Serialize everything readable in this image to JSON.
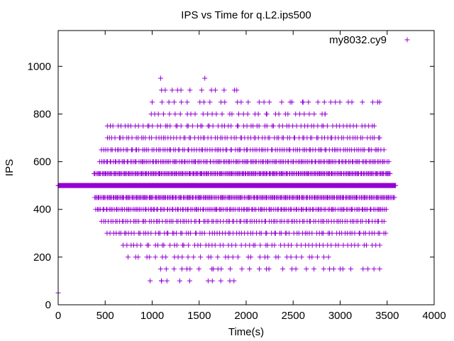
{
  "chart_data": {
    "type": "scatter",
    "title": "IPS vs Time for q.L2.ips500",
    "xlabel": "Time(s)",
    "ylabel": "IPS",
    "xlim": [
      0,
      4000
    ],
    "ylim": [
      0,
      1150
    ],
    "x_ticks": [
      0,
      500,
      1000,
      1500,
      2000,
      2500,
      3000,
      3500,
      4000
    ],
    "y_ticks": [
      0,
      200,
      400,
      600,
      800,
      1000
    ],
    "grid": false,
    "legend_position": "top-right",
    "marker": "plus",
    "series": [
      {
        "name": "my8032.cy9",
        "color": "#9400d3",
        "levels": [
          {
            "y": 500,
            "x_start": 0,
            "x_end": 3590,
            "step": 5
          },
          {
            "y": 550,
            "x_start": 380,
            "x_end": 3540,
            "step": 12
          },
          {
            "y": 450,
            "x_start": 390,
            "x_end": 3590,
            "step": 12
          },
          {
            "y": 600,
            "x_start": 440,
            "x_end": 3520,
            "step": 18
          },
          {
            "y": 400,
            "x_start": 400,
            "x_end": 3500,
            "step": 18
          },
          {
            "y": 650,
            "x_start": 460,
            "x_end": 3480,
            "step": 24
          },
          {
            "y": 350,
            "x_start": 460,
            "x_end": 3480,
            "step": 24
          },
          {
            "y": 700,
            "x_start": 520,
            "x_end": 3450,
            "step": 30
          },
          {
            "y": 300,
            "x_start": 520,
            "x_end": 3500,
            "step": 30
          },
          {
            "y": 750,
            "x_start": 520,
            "x_end": 3400,
            "step": 38
          },
          {
            "y": 250,
            "x_start": 680,
            "x_end": 3450,
            "step": 42
          },
          {
            "y": 800,
            "x_start": 980,
            "x_end": 2850,
            "step": 55
          },
          {
            "y": 200,
            "x_start": 740,
            "x_end": 2900,
            "step": 60
          },
          {
            "y": 850,
            "x_start": 1000,
            "x_end": 3400,
            "step": 80
          },
          {
            "y": 150,
            "x_start": 1090,
            "x_end": 3420,
            "step": 85
          },
          {
            "y": 900,
            "x_start": 1090,
            "x_end": 1920,
            "step": 110
          },
          {
            "y": 100,
            "x_start": 960,
            "x_end": 1900,
            "step": 120
          }
        ],
        "extra_points": [
          [
            0,
            50
          ],
          [
            1090,
            950
          ],
          [
            1560,
            950
          ],
          [
            1100,
            100
          ],
          [
            1640,
            100
          ],
          [
            1870,
            100
          ],
          [
            1100,
            900
          ],
          [
            1270,
            900
          ],
          [
            1900,
            900
          ],
          [
            1630,
            900
          ],
          [
            2600,
            850
          ],
          [
            2900,
            850
          ],
          [
            3420,
            850
          ],
          [
            2840,
            800
          ],
          [
            1370,
            150
          ],
          [
            3000,
            150
          ],
          [
            3420,
            150
          ],
          [
            1650,
            150
          ]
        ]
      }
    ]
  }
}
